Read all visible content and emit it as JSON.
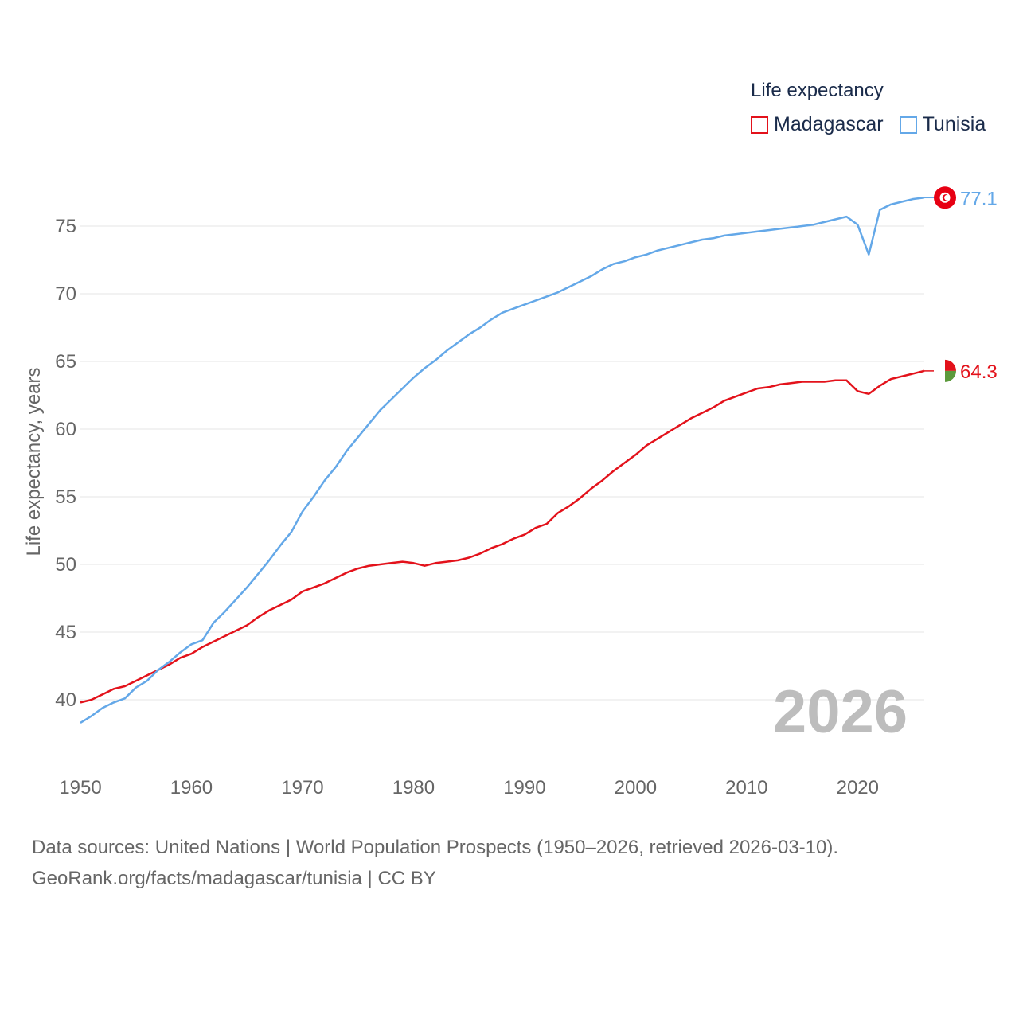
{
  "legend": {
    "title": "Life expectancy",
    "items": [
      {
        "label": "Madagascar",
        "color": "#e3121b"
      },
      {
        "label": "Tunisia",
        "color": "#64a8e8"
      }
    ]
  },
  "source": {
    "line1": "Data sources: United Nations | World Population Prospects (1950–2026, retrieved 2026-03-10).",
    "line2": "GeoRank.org/facts/madagascar/tunisia | CC BY"
  },
  "chart_data": {
    "type": "line",
    "title": "Life expectancy",
    "xlabel": "",
    "ylabel": "Life expectancy, years",
    "year_label": "2026",
    "xlim": [
      1950,
      2026
    ],
    "ylim": [
      36,
      78
    ],
    "x_ticks": [
      1950,
      1960,
      1970,
      1980,
      1990,
      2000,
      2010,
      2020
    ],
    "y_ticks": [
      40,
      45,
      50,
      55,
      60,
      65,
      70,
      75
    ],
    "grid": true,
    "legend_position": "top-right",
    "series": [
      {
        "name": "Madagascar",
        "color": "#e3121b",
        "end_label": "64.3",
        "flag_colors": [
          "#e3121b",
          "#ffffff",
          "#5c9a3c"
        ],
        "x": [
          1950,
          1951,
          1952,
          1953,
          1954,
          1955,
          1956,
          1957,
          1958,
          1959,
          1960,
          1961,
          1962,
          1963,
          1964,
          1965,
          1966,
          1967,
          1968,
          1969,
          1970,
          1971,
          1972,
          1973,
          1974,
          1975,
          1976,
          1977,
          1978,
          1979,
          1980,
          1981,
          1982,
          1983,
          1984,
          1985,
          1986,
          1987,
          1988,
          1989,
          1990,
          1991,
          1992,
          1993,
          1994,
          1995,
          1996,
          1997,
          1998,
          1999,
          2000,
          2001,
          2002,
          2003,
          2004,
          2005,
          2006,
          2007,
          2008,
          2009,
          2010,
          2011,
          2012,
          2013,
          2014,
          2015,
          2016,
          2017,
          2018,
          2019,
          2020,
          2021,
          2022,
          2023,
          2024,
          2025,
          2026
        ],
        "values": [
          39.8,
          40.0,
          40.4,
          40.8,
          41.0,
          41.4,
          41.8,
          42.2,
          42.6,
          43.1,
          43.4,
          43.9,
          44.3,
          44.7,
          45.1,
          45.5,
          46.1,
          46.6,
          47.0,
          47.4,
          48.0,
          48.3,
          48.6,
          49.0,
          49.4,
          49.7,
          49.9,
          50.0,
          50.1,
          50.2,
          50.1,
          49.9,
          50.1,
          50.2,
          50.3,
          50.5,
          50.8,
          51.2,
          51.5,
          51.9,
          52.2,
          52.7,
          53.0,
          53.8,
          54.3,
          54.9,
          55.6,
          56.2,
          56.9,
          57.5,
          58.1,
          58.8,
          59.3,
          59.8,
          60.3,
          60.8,
          61.2,
          61.6,
          62.1,
          62.4,
          62.7,
          63.0,
          63.1,
          63.3,
          63.4,
          63.5,
          63.5,
          63.5,
          63.6,
          63.6,
          62.8,
          62.6,
          63.2,
          63.7,
          63.9,
          64.1,
          64.3
        ]
      },
      {
        "name": "Tunisia",
        "color": "#64a8e8",
        "end_label": "77.1",
        "flag_colors": [
          "#e70013",
          "#ffffff"
        ],
        "x": [
          1950,
          1951,
          1952,
          1953,
          1954,
          1955,
          1956,
          1957,
          1958,
          1959,
          1960,
          1961,
          1962,
          1963,
          1964,
          1965,
          1966,
          1967,
          1968,
          1969,
          1970,
          1971,
          1972,
          1973,
          1974,
          1975,
          1976,
          1977,
          1978,
          1979,
          1980,
          1981,
          1982,
          1983,
          1984,
          1985,
          1986,
          1987,
          1988,
          1989,
          1990,
          1991,
          1992,
          1993,
          1994,
          1995,
          1996,
          1997,
          1998,
          1999,
          2000,
          2001,
          2002,
          2003,
          2004,
          2005,
          2006,
          2007,
          2008,
          2009,
          2010,
          2011,
          2012,
          2013,
          2014,
          2015,
          2016,
          2017,
          2018,
          2019,
          2020,
          2021,
          2022,
          2023,
          2024,
          2025,
          2026
        ],
        "values": [
          38.3,
          38.8,
          39.4,
          39.8,
          40.1,
          40.9,
          41.4,
          42.2,
          42.8,
          43.5,
          44.1,
          44.4,
          45.7,
          46.5,
          47.4,
          48.3,
          49.3,
          50.3,
          51.4,
          52.4,
          53.9,
          55.0,
          56.2,
          57.2,
          58.4,
          59.4,
          60.4,
          61.4,
          62.2,
          63.0,
          63.8,
          64.5,
          65.1,
          65.8,
          66.4,
          67.0,
          67.5,
          68.1,
          68.6,
          68.9,
          69.2,
          69.5,
          69.8,
          70.1,
          70.5,
          70.9,
          71.3,
          71.8,
          72.2,
          72.4,
          72.7,
          72.9,
          73.2,
          73.4,
          73.6,
          73.8,
          74.0,
          74.1,
          74.3,
          74.4,
          74.5,
          74.6,
          74.7,
          74.8,
          74.9,
          75.0,
          75.1,
          75.3,
          75.5,
          75.7,
          75.1,
          72.9,
          76.2,
          76.6,
          76.8,
          77.0,
          77.1
        ]
      }
    ]
  }
}
